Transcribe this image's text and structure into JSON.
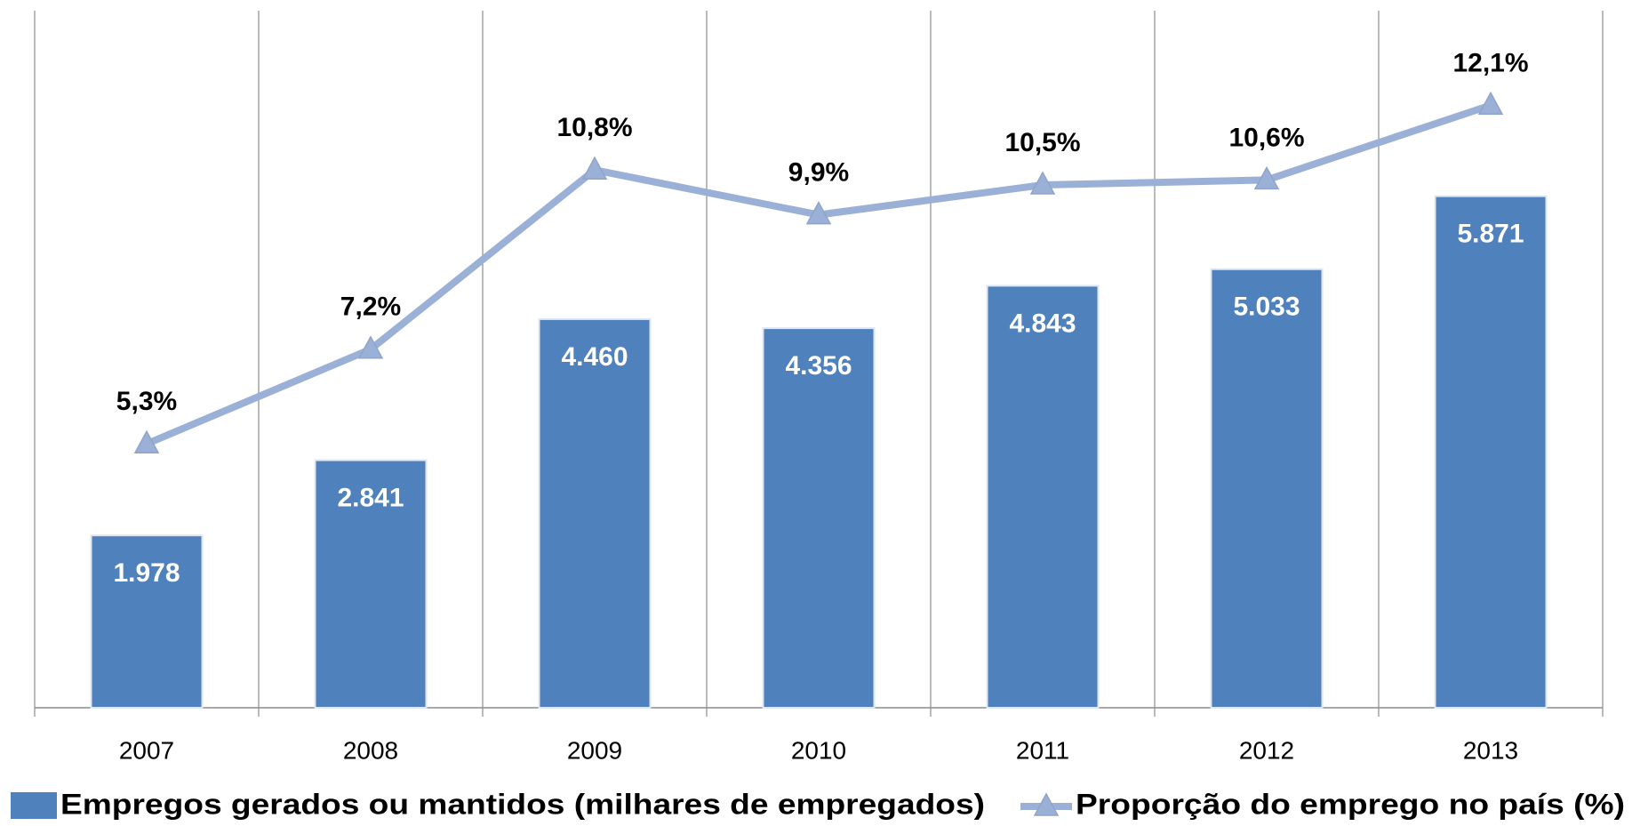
{
  "chart_data": {
    "type": "bar_line",
    "categories": [
      "2007",
      "2008",
      "2009",
      "2010",
      "2011",
      "2012",
      "2013"
    ],
    "series": [
      {
        "name": "Empregos gerados ou mantidos (milhares de empregados)",
        "type": "bar",
        "color": "#4f81bd",
        "values": [
          1978,
          2841,
          4460,
          4356,
          4843,
          5033,
          5871
        ],
        "value_labels": [
          "1.978",
          "2.841",
          "4.460",
          "4.356",
          "4.843",
          "5.033",
          "5.871"
        ]
      },
      {
        "name": "Proporção do emprego no país (%)",
        "type": "line",
        "axis": "y2",
        "color": "#9bb0d6",
        "values": [
          5.3,
          7.2,
          10.8,
          9.9,
          10.5,
          10.6,
          12.1
        ],
        "value_labels": [
          "5,3%",
          "7,2%",
          "10,8%",
          "9,9%",
          "10,5%",
          "10,6%",
          "12,1%"
        ]
      }
    ],
    "ylim": [
      0,
      8000
    ],
    "y2lim": [
      0,
      14
    ],
    "legend": "bottom"
  }
}
